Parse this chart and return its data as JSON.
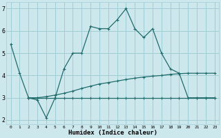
{
  "xlabel": "Humidex (Indice chaleur)",
  "bg_color": "#cde8ed",
  "grid_color": "#a0cdd4",
  "line_color": "#1e6b6b",
  "xlim": [
    -0.5,
    23.5
  ],
  "ylim": [
    1.8,
    7.3
  ],
  "yticks": [
    2,
    3,
    4,
    5,
    6,
    7
  ],
  "xticks": [
    0,
    1,
    2,
    3,
    4,
    5,
    6,
    7,
    8,
    9,
    10,
    11,
    12,
    13,
    14,
    15,
    16,
    17,
    18,
    19,
    20,
    21,
    22,
    23
  ],
  "series1_x": [
    0,
    1,
    2,
    3,
    4,
    5,
    6,
    7,
    8,
    9,
    10,
    11,
    12,
    13,
    14,
    15,
    16,
    17,
    18,
    19,
    20,
    21,
    22,
    23
  ],
  "series1_y": [
    5.4,
    4.1,
    3.0,
    2.9,
    2.1,
    3.0,
    4.3,
    5.0,
    5.0,
    6.2,
    6.1,
    6.1,
    6.5,
    7.0,
    6.1,
    5.7,
    6.1,
    5.0,
    4.3,
    4.1,
    3.0,
    3.0,
    3.0,
    3.0
  ],
  "series2_x": [
    2,
    3,
    4,
    5,
    6,
    7,
    8,
    9,
    10,
    11,
    12,
    13,
    14,
    15,
    16,
    17,
    18,
    19,
    20,
    21,
    22,
    23
  ],
  "series2_y": [
    3.0,
    3.0,
    3.0,
    3.0,
    3.0,
    3.0,
    3.0,
    3.0,
    3.0,
    3.0,
    3.0,
    3.0,
    3.0,
    3.0,
    3.0,
    3.0,
    3.0,
    3.0,
    3.0,
    3.0,
    3.0,
    3.0
  ],
  "series3_x": [
    2,
    3,
    4,
    5,
    6,
    7,
    8,
    9,
    10,
    11,
    12,
    13,
    14,
    15,
    16,
    17,
    18,
    19,
    20,
    21,
    22,
    23
  ],
  "series3_y": [
    3.0,
    3.0,
    3.05,
    3.12,
    3.2,
    3.3,
    3.42,
    3.52,
    3.62,
    3.68,
    3.75,
    3.82,
    3.88,
    3.93,
    3.97,
    4.0,
    4.05,
    4.08,
    4.1,
    4.1,
    4.1,
    4.1
  ]
}
